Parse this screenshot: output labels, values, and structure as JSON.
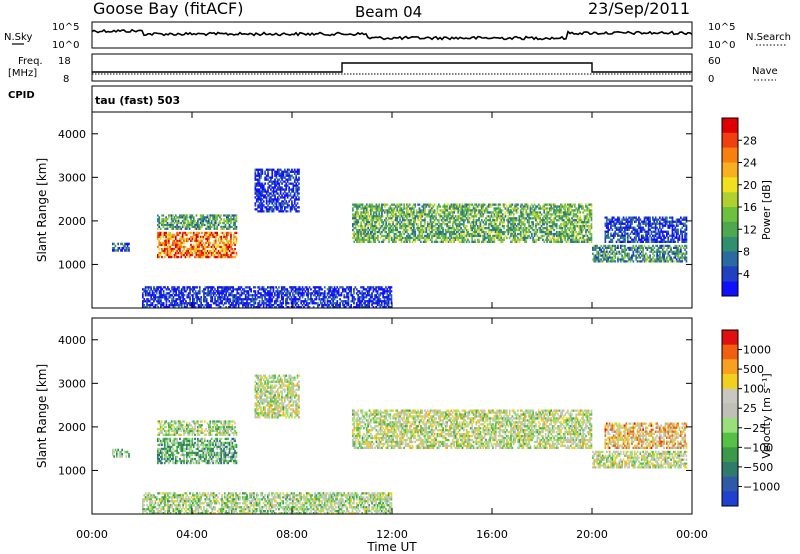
{
  "header": {
    "station": "Goose Bay (fitACF)",
    "beam": "Beam 04",
    "date": "23/Sep/2011"
  },
  "param_panels": {
    "nsky_label": "N.Sky",
    "nsearch_label": "N.Search",
    "nsky_ticks": [
      "10^5",
      "10^0"
    ],
    "freq_label": "Freq.",
    "freq_unit": "[MHz]",
    "freq_ticks": [
      "18",
      "8"
    ],
    "nave_label": "Nave",
    "nave_ticks": [
      "60",
      "0"
    ],
    "cpid_label": "CPID",
    "cpid_value": "tau (fast) 503"
  },
  "chart_data": [
    {
      "type": "heatmap",
      "name": "power",
      "xlabel": "Time UT",
      "ylabel": "Slant Range [km]",
      "xticks": [
        "00:00",
        "04:00",
        "08:00",
        "12:00",
        "16:00",
        "20:00",
        "00:00"
      ],
      "xlim_hours": [
        0,
        24
      ],
      "ylim": [
        0,
        4500
      ],
      "yticks": [
        1000,
        2000,
        3000,
        4000
      ],
      "colorbar": {
        "label": "Power [dB]",
        "ticks": [
          "4",
          "8",
          "12",
          "16",
          "20",
          "24",
          "28"
        ],
        "colors": [
          "#1010ff",
          "#2040c0",
          "#2a6aa0",
          "#2f8f6f",
          "#4fa84f",
          "#70c040",
          "#b0d030",
          "#f0e020",
          "#f8b020",
          "#f88010",
          "#f04010",
          "#e00000"
        ]
      },
      "regions": [
        {
          "t": [
            2.6,
            5.8
          ],
          "r": [
            1150,
            1750
          ],
          "level": 0.8
        },
        {
          "t": [
            2.6,
            5.8
          ],
          "r": [
            1800,
            2150
          ],
          "level": 0.35
        },
        {
          "t": [
            10.4,
            20.0
          ],
          "r": [
            1500,
            2400
          ],
          "level": 0.4
        },
        {
          "t": [
            20.0,
            23.8
          ],
          "r": [
            1050,
            1450
          ],
          "level": 0.3
        },
        {
          "t": [
            20.5,
            23.8
          ],
          "r": [
            1500,
            2100
          ],
          "level": 0.1
        },
        {
          "t": [
            0.8,
            1.5
          ],
          "r": [
            1300,
            1500
          ],
          "level": 0.15
        },
        {
          "t": [
            6.5,
            8.3
          ],
          "r": [
            2200,
            3200
          ],
          "level": 0.05
        },
        {
          "t": [
            2.0,
            12.0
          ],
          "r": [
            0,
            500
          ],
          "level": 0.05
        }
      ]
    },
    {
      "type": "heatmap",
      "name": "velocity",
      "xlabel": "Time UT",
      "ylabel": "Slant Range [km]",
      "xticks": [
        "00:00",
        "04:00",
        "08:00",
        "12:00",
        "16:00",
        "20:00",
        "00:00"
      ],
      "xlim_hours": [
        0,
        24
      ],
      "ylim": [
        0,
        4500
      ],
      "yticks": [
        1000,
        2000,
        3000,
        4000
      ],
      "colorbar": {
        "label": "Velocity [m s⁻¹]",
        "ticks": [
          "1000",
          "500",
          "100",
          "25",
          "−25",
          "−100",
          "−500",
          "−1000"
        ],
        "colors": [
          "#2040d0",
          "#2f58a8",
          "#2f7a6a",
          "#3a9a4a",
          "#55c045",
          "#9ae07a",
          "#c0c0b8",
          "#c8c8c0",
          "#f0d020",
          "#f8a020",
          "#f06010",
          "#e01010"
        ]
      },
      "regions": [
        {
          "t": [
            2.6,
            5.8
          ],
          "r": [
            1150,
            1750
          ],
          "level": 0.35
        },
        {
          "t": [
            2.6,
            5.8
          ],
          "r": [
            1800,
            2150
          ],
          "level": 0.5
        },
        {
          "t": [
            10.4,
            20.0
          ],
          "r": [
            1500,
            2400
          ],
          "level": 0.55
        },
        {
          "t": [
            20.0,
            23.8
          ],
          "r": [
            1050,
            1450
          ],
          "level": 0.55
        },
        {
          "t": [
            20.5,
            23.8
          ],
          "r": [
            1500,
            2100
          ],
          "level": 0.7
        },
        {
          "t": [
            0.8,
            1.5
          ],
          "r": [
            1300,
            1500
          ],
          "level": 0.4
        },
        {
          "t": [
            6.5,
            8.3
          ],
          "r": [
            2200,
            3200
          ],
          "level": 0.55
        },
        {
          "t": [
            2.0,
            12.0
          ],
          "r": [
            0,
            500
          ],
          "level": 0.5
        }
      ]
    }
  ],
  "nave_series": {
    "segments": [
      {
        "t": [
          0,
          10
        ],
        "value": 8
      },
      {
        "t": [
          10,
          20
        ],
        "value": 12
      },
      {
        "t": [
          20,
          24
        ],
        "value": 8
      }
    ]
  }
}
